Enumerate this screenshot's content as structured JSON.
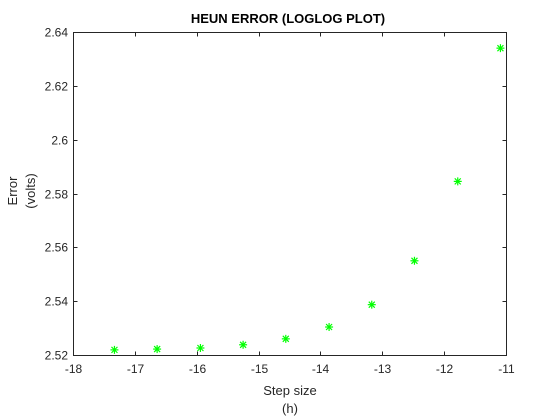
{
  "chart_data": {
    "type": "scatter",
    "title": "HEUN ERROR (LOGLOG PLOT)",
    "xlabel": [
      "Step size",
      "(h)"
    ],
    "ylabel": [
      "Error",
      "(volts)"
    ],
    "xlim": [
      -18,
      -11
    ],
    "ylim": [
      2.52,
      2.64
    ],
    "xticks": [
      -18,
      -17,
      -16,
      -15,
      -14,
      -13,
      -12,
      -11
    ],
    "yticks": [
      2.52,
      2.54,
      2.56,
      2.58,
      2.6,
      2.62,
      2.64
    ],
    "xtick_labels": [
      "-18",
      "-17",
      "-16",
      "-15",
      "-14",
      "-13",
      "-12",
      "-11"
    ],
    "ytick_labels": [
      "2.52",
      "2.54",
      "2.56",
      "2.58",
      "2.6",
      "2.62",
      "2.64"
    ],
    "grid": false,
    "marker": "asterisk",
    "colors": {
      "marker": "#00ff00",
      "axes": "#262626"
    },
    "series": [
      {
        "x": [
          -17.33,
          -16.64,
          -15.94,
          -15.25,
          -14.56,
          -13.86,
          -13.17,
          -12.48,
          -11.78,
          -11.09
        ],
        "y": [
          2.5219,
          2.5222,
          2.5226,
          2.5238,
          2.526,
          2.5304,
          2.5387,
          2.555,
          2.5845,
          2.634
        ]
      }
    ]
  }
}
